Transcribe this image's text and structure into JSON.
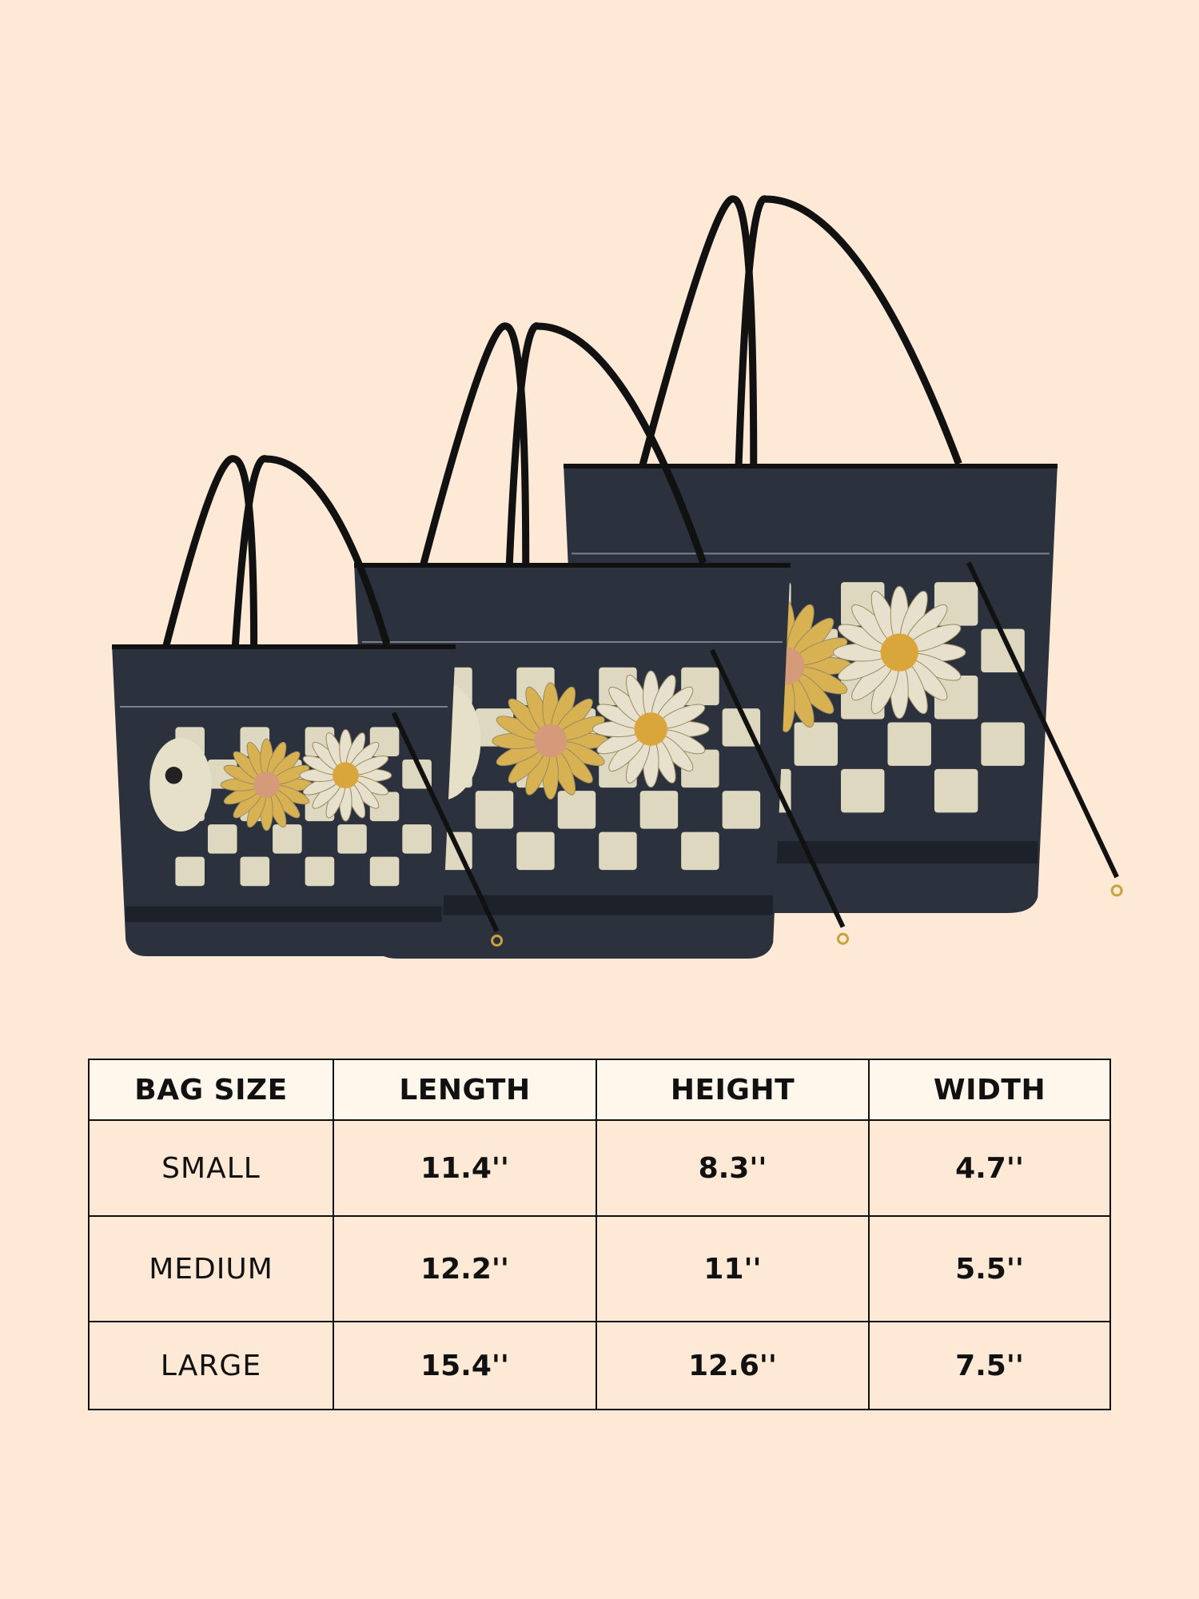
{
  "product_image": {
    "description_icon": "tote-bags-three-sizes",
    "colors": {
      "background": "#fde9d6",
      "bag_body": "#2c323d",
      "handle": "#111111",
      "checker_light": "#ddd8bf",
      "flower_yellow": "#d8b252",
      "flower_white": "#e6e0cc"
    }
  },
  "size_table": {
    "headers": [
      "BAG SIZE",
      "LENGTH",
      "HEIGHT",
      "WIDTH"
    ],
    "rows": [
      {
        "size": "SMALL",
        "length": "11.4''",
        "height": "8.3''",
        "width": "4.7''"
      },
      {
        "size": "MEDIUM",
        "length": "12.2''",
        "height": "11''",
        "width": "5.5''"
      },
      {
        "size": "LARGE",
        "length": "15.4''",
        "height": "12.6''",
        "width": "7.5''"
      }
    ]
  }
}
